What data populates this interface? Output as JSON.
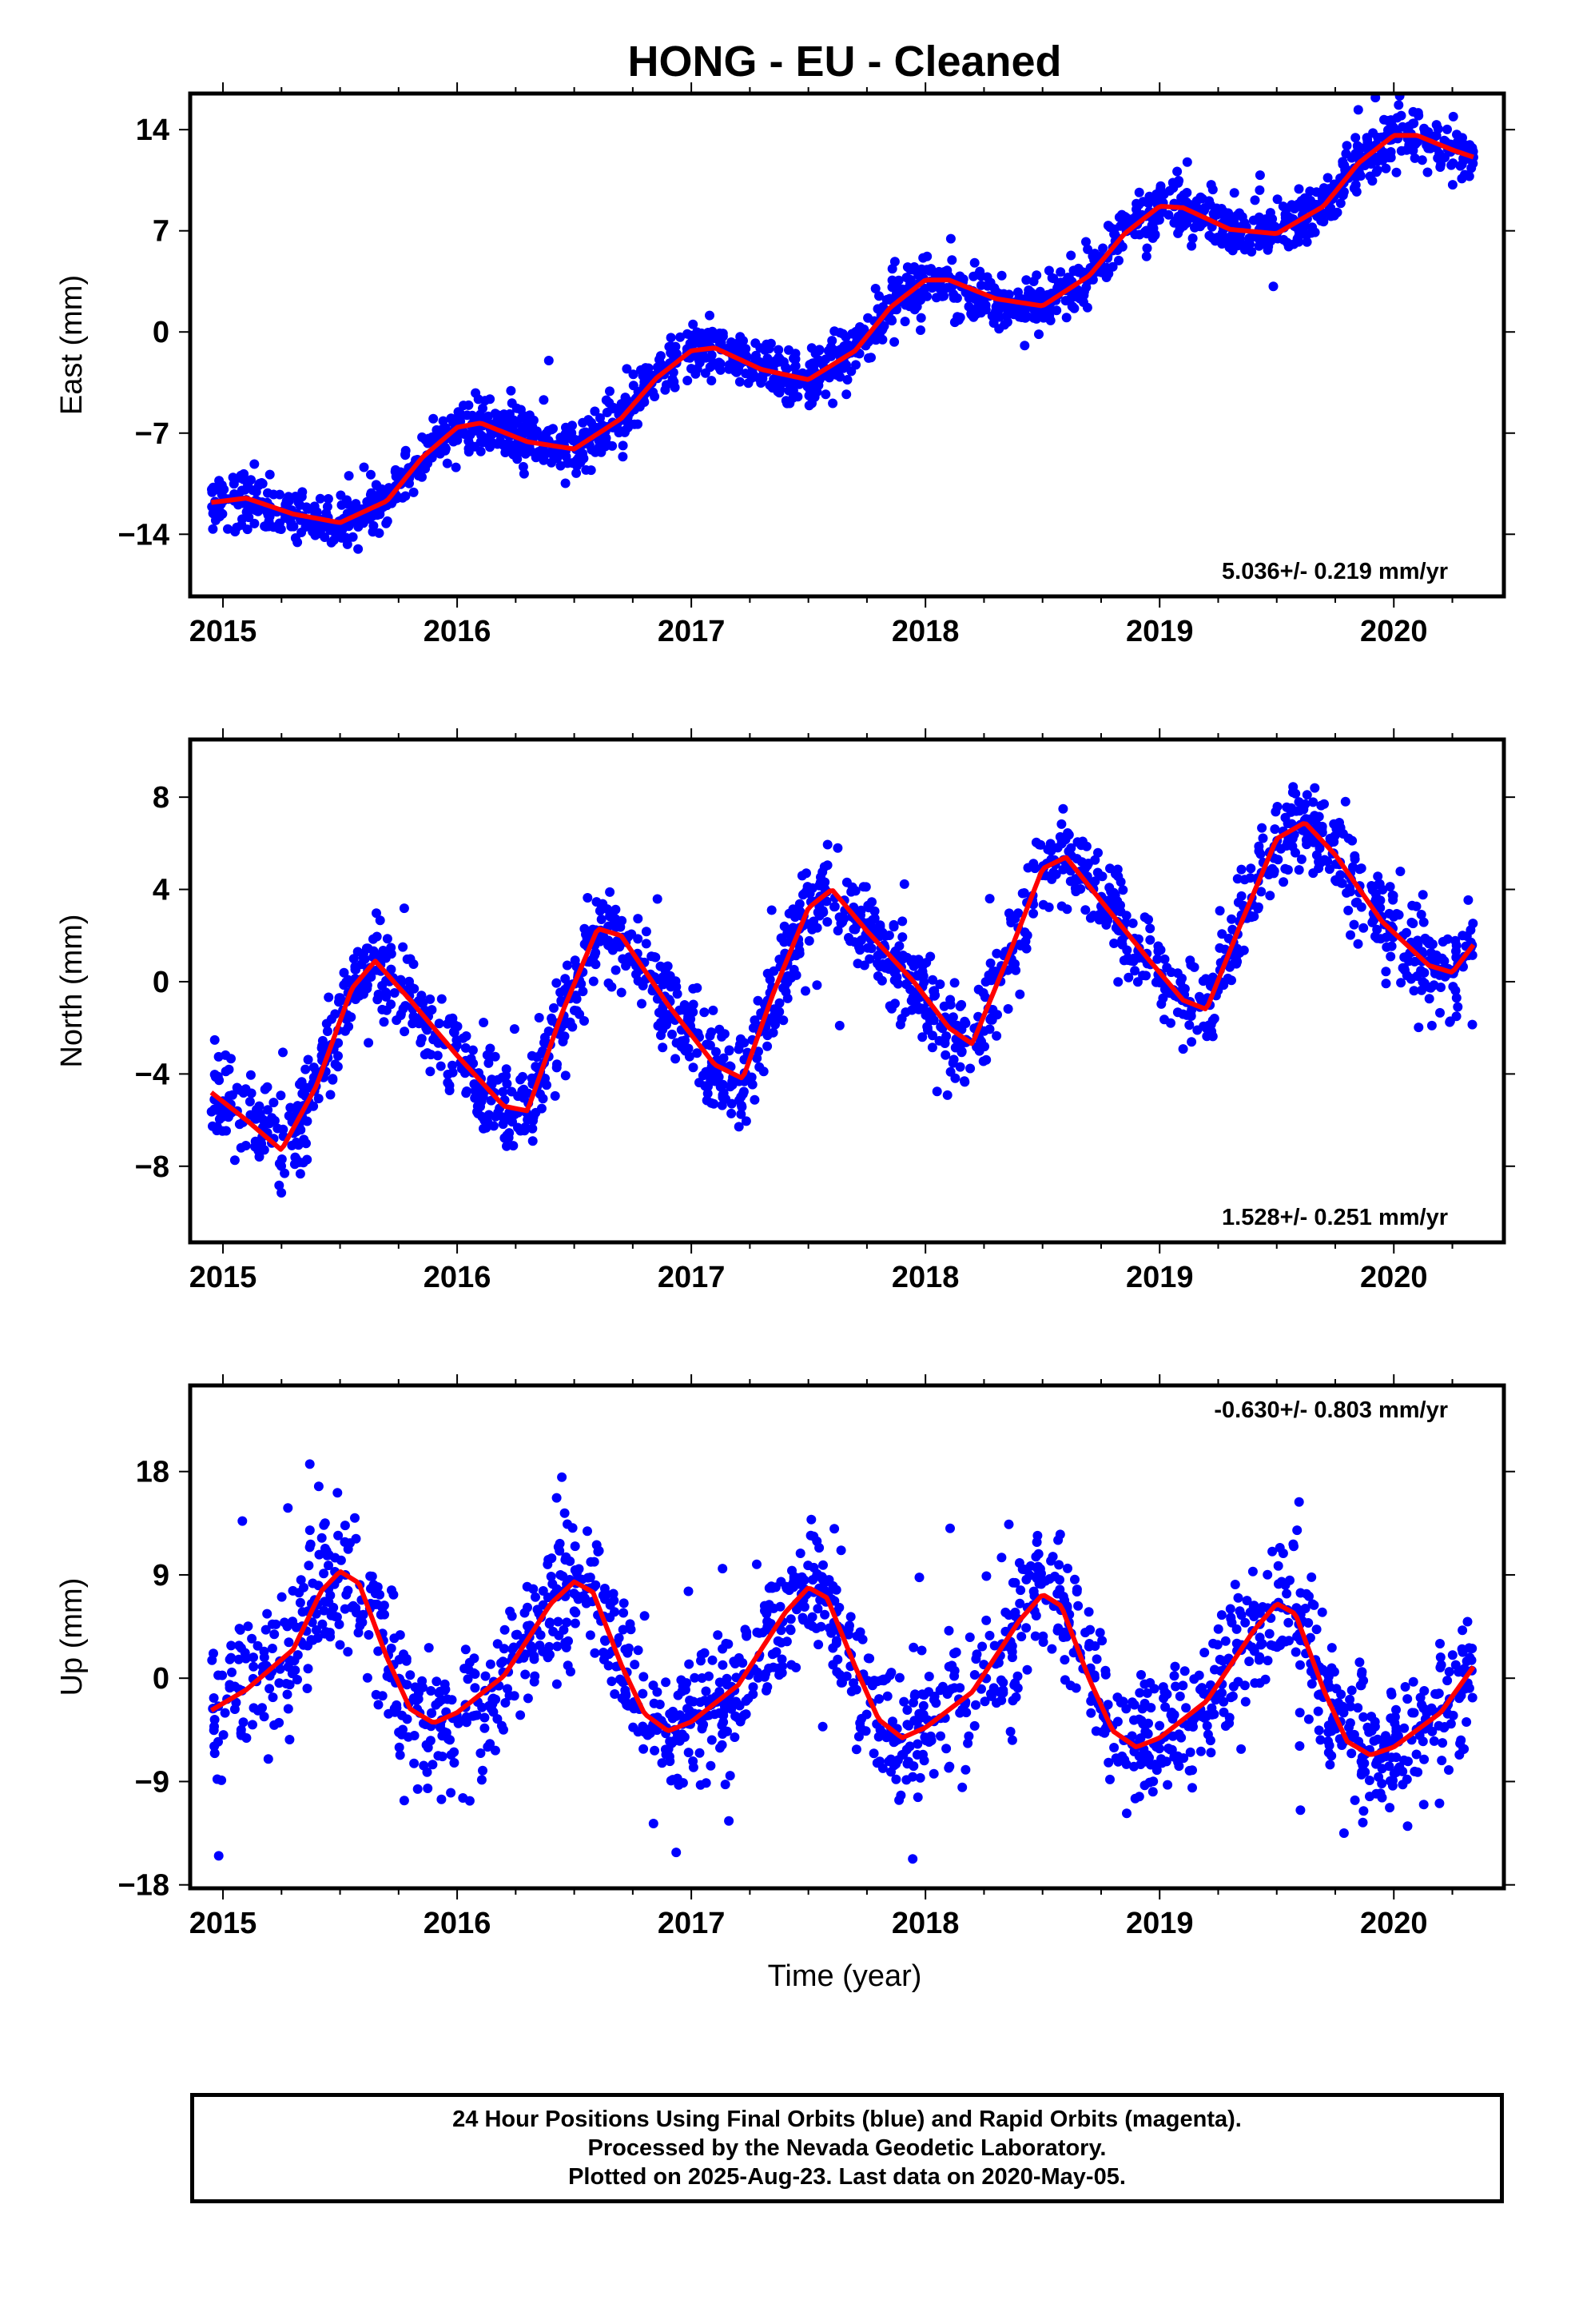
{
  "figure": {
    "title": "HONG  - EU - Cleaned",
    "xlabel": "Time (year)",
    "footer": [
      "24 Hour Positions Using Final Orbits (blue) and Rapid Orbits (magenta).",
      "Processed by the Nevada Geodetic Laboratory.",
      "Plotted on 2025-Aug-23. Last data on 2020-May-05."
    ]
  },
  "colors": {
    "points": "#0000ff",
    "fit": "#ff0000",
    "frame": "#000000"
  },
  "chart_data": [
    {
      "type": "scatter",
      "name": "east",
      "ylabel": "East (mm)",
      "rate_label": "5.036+/- 0.219 mm/yr",
      "rate_position": "bottom-right",
      "xlim": [
        2014.86,
        2020.47
      ],
      "ylim": [
        -18.3,
        16.5
      ],
      "xticks": [
        2015,
        2016,
        2017,
        2018,
        2019,
        2020
      ],
      "yticks": [
        -14,
        -7,
        0,
        7,
        14
      ],
      "ytick_labels": [
        "−14",
        "−7",
        "0",
        "7",
        "14"
      ],
      "fit": {
        "x": [
          2014.95,
          2015.1,
          2015.3,
          2015.5,
          2015.7,
          2015.85,
          2016.0,
          2016.1,
          2016.3,
          2016.5,
          2016.7,
          2016.85,
          2017.0,
          2017.1,
          2017.3,
          2017.5,
          2017.7,
          2017.85,
          2018.0,
          2018.1,
          2018.3,
          2018.5,
          2018.7,
          2018.85,
          2019.0,
          2019.1,
          2019.3,
          2019.5,
          2019.7,
          2019.85,
          2020.0,
          2020.1,
          2020.25,
          2020.34
        ],
        "y": [
          -11.8,
          -11.5,
          -12.6,
          -13.2,
          -11.7,
          -8.7,
          -6.6,
          -6.3,
          -7.6,
          -8.1,
          -6.0,
          -3.2,
          -1.3,
          -1.1,
          -2.6,
          -3.3,
          -1.3,
          1.7,
          3.6,
          3.6,
          2.3,
          1.8,
          3.9,
          6.8,
          8.7,
          8.6,
          7.1,
          6.8,
          8.7,
          11.7,
          13.6,
          13.6,
          12.6,
          12.1
        ]
      },
      "scatter": {
        "count": 1850,
        "noise_sd": 0.9,
        "gaps": []
      }
    },
    {
      "type": "scatter",
      "name": "north",
      "ylabel": "North (mm)",
      "rate_label": "1.528+/- 0.251 mm/yr",
      "rate_position": "bottom-right",
      "xlim": [
        2014.86,
        2020.47
      ],
      "ylim": [
        -11.3,
        10.5
      ],
      "xticks": [
        2015,
        2016,
        2017,
        2018,
        2019,
        2020
      ],
      "yticks": [
        -8,
        -4,
        0,
        4,
        8
      ],
      "ytick_labels": [
        "−8",
        "−4",
        "0",
        "4",
        "8"
      ],
      "fit": {
        "x": [
          2014.95,
          2015.1,
          2015.25,
          2015.4,
          2015.55,
          2015.65,
          2015.8,
          2016.0,
          2016.2,
          2016.3,
          2016.45,
          2016.6,
          2016.7,
          2016.9,
          2017.1,
          2017.22,
          2017.35,
          2017.5,
          2017.6,
          2017.75,
          2017.95,
          2018.1,
          2018.2,
          2018.35,
          2018.5,
          2018.6,
          2018.75,
          2018.95,
          2019.1,
          2019.2,
          2019.35,
          2019.5,
          2019.62,
          2019.75,
          2019.95,
          2020.15,
          2020.25,
          2020.34
        ],
        "y": [
          -4.8,
          -6.0,
          -7.3,
          -4.5,
          -0.3,
          0.9,
          -0.8,
          -3.2,
          -5.4,
          -5.6,
          -1.3,
          2.3,
          2.0,
          -1.0,
          -3.6,
          -4.2,
          -0.5,
          3.2,
          4.0,
          2.2,
          0.0,
          -2.0,
          -2.7,
          1.0,
          4.9,
          5.4,
          3.5,
          1.0,
          -0.8,
          -1.2,
          2.6,
          6.2,
          6.9,
          5.5,
          2.6,
          0.7,
          0.4,
          1.6
        ]
      },
      "scatter": {
        "count": 1700,
        "noise_sd": 1.0,
        "gaps": [
          [
            2019.88,
            2019.9
          ]
        ]
      }
    },
    {
      "type": "scatter",
      "name": "up",
      "ylabel": "Up (mm)",
      "rate_label": "-0.630+/- 0.803 mm/yr",
      "rate_position": "top-right",
      "xlim": [
        2014.86,
        2020.47
      ],
      "ylim": [
        -18.3,
        25.5
      ],
      "xticks": [
        2015,
        2016,
        2017,
        2018,
        2019,
        2020
      ],
      "yticks": [
        -18,
        -9,
        0,
        9,
        18
      ],
      "ytick_labels": [
        "−18",
        "−9",
        "0",
        "9",
        "18"
      ],
      "fit": {
        "x": [
          2014.95,
          2015.1,
          2015.3,
          2015.42,
          2015.5,
          2015.58,
          2015.7,
          2015.8,
          2015.9,
          2016.0,
          2016.2,
          2016.4,
          2016.5,
          2016.58,
          2016.7,
          2016.8,
          2016.9,
          2017.0,
          2017.2,
          2017.4,
          2017.5,
          2017.58,
          2017.7,
          2017.8,
          2017.9,
          2018.0,
          2018.2,
          2018.4,
          2018.5,
          2018.58,
          2018.7,
          2018.8,
          2018.9,
          2019.0,
          2019.2,
          2019.4,
          2019.5,
          2019.58,
          2019.7,
          2019.8,
          2019.9,
          2020.0,
          2020.2,
          2020.34
        ],
        "y": [
          -2.8,
          -1.0,
          2.5,
          7.6,
          9.3,
          8.3,
          1.8,
          -2.7,
          -3.9,
          -3.0,
          0.2,
          6.5,
          8.4,
          7.5,
          1.2,
          -3.1,
          -4.6,
          -3.8,
          -0.6,
          5.7,
          7.9,
          7.0,
          1.0,
          -3.6,
          -5.2,
          -4.3,
          -1.2,
          5.0,
          7.3,
          6.3,
          -0.1,
          -4.6,
          -6.0,
          -5.2,
          -2.0,
          4.1,
          6.5,
          5.6,
          -1.0,
          -5.5,
          -6.7,
          -6.0,
          -3.0,
          1.0
        ]
      },
      "scatter": {
        "count": 1650,
        "noise_sd": 3.0,
        "gaps": []
      }
    }
  ]
}
